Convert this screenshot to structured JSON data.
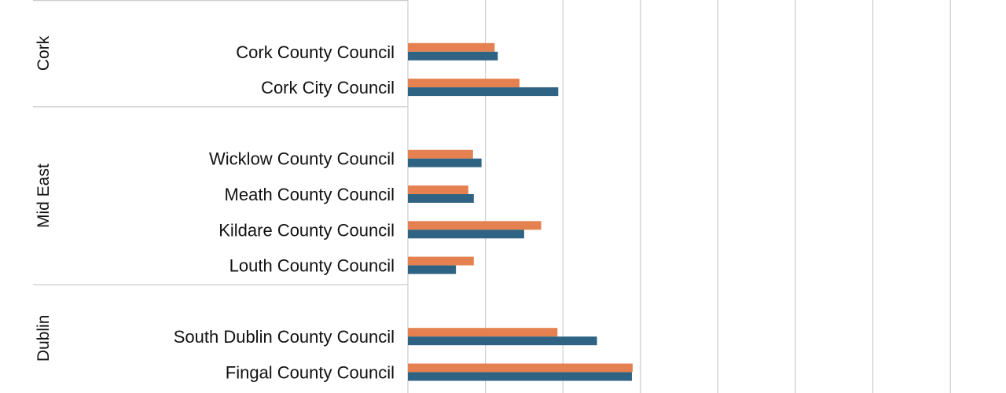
{
  "chart_data": {
    "type": "bar",
    "orientation": "horizontal",
    "grid": true,
    "colors": {
      "series_a": "#E58150",
      "series_b": "#2E6383",
      "grid": "#CCCCCC",
      "separator": "#CCCCCC"
    },
    "groups": [
      {
        "region": "Cork",
        "items": [
          {
            "label": "Cork County Council",
            "values": [
              1.12,
              1.16
            ]
          },
          {
            "label": "Cork City Council",
            "values": [
              1.44,
              1.94
            ]
          }
        ]
      },
      {
        "region": "Mid East",
        "items": [
          {
            "label": "Wicklow County Council",
            "values": [
              0.84,
              0.95
            ]
          },
          {
            "label": "Meath County Council",
            "values": [
              0.78,
              0.85
            ]
          },
          {
            "label": "Kildare County Council",
            "values": [
              1.72,
              1.5
            ]
          },
          {
            "label": "Louth County Council",
            "values": [
              0.85,
              0.62
            ]
          }
        ]
      },
      {
        "region": "Dublin",
        "items": [
          {
            "label": "South Dublin County Council",
            "values": [
              1.93,
              2.44
            ]
          },
          {
            "label": "Fingal County Council",
            "values": [
              2.9,
              2.89
            ]
          }
        ]
      }
    ]
  }
}
